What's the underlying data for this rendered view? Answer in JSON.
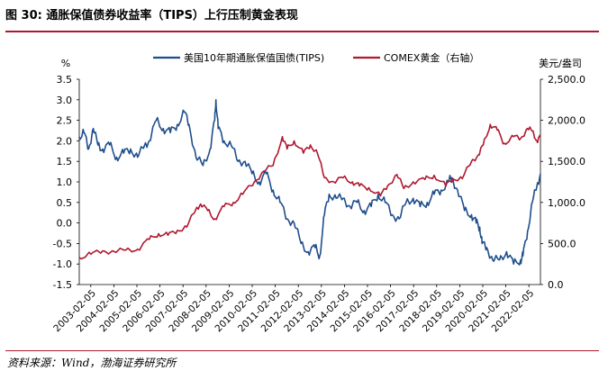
{
  "header": {
    "title": "图 30:  通胀保值债券收益率（TIPS）上行压制黄金表现"
  },
  "source": "资料来源：Wind，渤海证券研究所",
  "chart_data": {
    "type": "line",
    "title": "",
    "legend_position": "top",
    "left_axis": {
      "unit": "%",
      "ylim": [
        -1.5,
        3.5
      ],
      "ticks": [
        "3.5",
        "3.0",
        "2.5",
        "2.0",
        "1.5",
        "1.0",
        "0.5",
        "0.0",
        "-0.5",
        "-1.0",
        "-1.5"
      ]
    },
    "right_axis": {
      "unit": "美元/盎司",
      "ylim": [
        0,
        2500
      ],
      "ticks": [
        "2,500.0",
        "2,000.0",
        "1,500.0",
        "1,000.0",
        "500.0",
        "0.0"
      ]
    },
    "x_tick_labels": [
      "2003-02-05",
      "2004-02-05",
      "2005-02-05",
      "2006-02-05",
      "2007-02-05",
      "2008-02-05",
      "2009-02-05",
      "2010-02-05",
      "2011-02-05",
      "2012-02-05",
      "2013-02-05",
      "2014-02-05",
      "2015-02-05",
      "2016-02-05",
      "2017-02-05",
      "2018-02-05",
      "2019-02-05",
      "2020-02-05",
      "2021-02-05",
      "2022-02-05"
    ],
    "x_range": [
      2003.0,
      2022.75
    ],
    "series": [
      {
        "name": "美国10年期通胀保值国债(TIPS)",
        "axis": "left",
        "color": "#1f4e8c",
        "x": [
          2003.0,
          2003.2,
          2003.4,
          2003.6,
          2003.8,
          2004.0,
          2004.3,
          2004.6,
          2004.9,
          2005.2,
          2005.5,
          2005.8,
          2006.0,
          2006.3,
          2006.6,
          2006.9,
          2007.2,
          2007.5,
          2007.7,
          2008.0,
          2008.3,
          2008.6,
          2008.8,
          2008.85,
          2008.95,
          2009.2,
          2009.5,
          2009.8,
          2010.1,
          2010.4,
          2010.7,
          2011.0,
          2011.3,
          2011.6,
          2011.9,
          2012.2,
          2012.5,
          2012.8,
          2013.1,
          2013.3,
          2013.5,
          2013.7,
          2014.0,
          2014.3,
          2014.6,
          2014.9,
          2015.2,
          2015.5,
          2015.8,
          2016.1,
          2016.4,
          2016.7,
          2017.0,
          2017.3,
          2017.6,
          2017.9,
          2018.2,
          2018.5,
          2018.8,
          2018.95,
          2019.2,
          2019.5,
          2019.8,
          2020.0,
          2020.15,
          2020.25,
          2020.45,
          2020.7,
          2021.0,
          2021.3,
          2021.6,
          2021.9,
          2022.0,
          2022.2,
          2022.4,
          2022.6,
          2022.75
        ],
        "values": [
          2.1,
          2.2,
          1.8,
          2.3,
          1.9,
          1.8,
          1.9,
          1.6,
          1.7,
          1.8,
          1.6,
          1.9,
          2.0,
          2.5,
          2.3,
          2.2,
          2.4,
          2.7,
          2.4,
          1.6,
          1.4,
          1.8,
          2.5,
          3.0,
          2.3,
          2.0,
          1.9,
          1.5,
          1.5,
          1.2,
          1.0,
          1.2,
          0.8,
          0.5,
          0.1,
          0.0,
          -0.5,
          -0.7,
          -0.6,
          -0.8,
          0.2,
          0.7,
          0.6,
          0.6,
          0.4,
          0.5,
          0.3,
          0.4,
          0.7,
          0.5,
          0.2,
          0.1,
          0.5,
          0.6,
          0.4,
          0.5,
          0.7,
          0.8,
          1.0,
          1.1,
          0.8,
          0.3,
          0.2,
          0.0,
          -0.1,
          -0.5,
          -0.6,
          -0.9,
          -0.9,
          -0.7,
          -1.0,
          -0.9,
          -0.8,
          -0.2,
          0.5,
          0.9,
          1.2
        ]
      },
      {
        "name": "COMEX黄金（右轴）",
        "axis": "right",
        "color": "#b0182f",
        "x": [
          2003.0,
          2003.5,
          2004.0,
          2004.5,
          2005.0,
          2005.5,
          2006.0,
          2006.4,
          2006.8,
          2007.2,
          2007.6,
          2008.0,
          2008.2,
          2008.5,
          2008.8,
          2009.2,
          2009.6,
          2010.0,
          2010.5,
          2010.9,
          2011.3,
          2011.7,
          2011.9,
          2012.2,
          2012.6,
          2012.9,
          2013.2,
          2013.5,
          2013.9,
          2014.3,
          2014.7,
          2015.0,
          2015.4,
          2015.9,
          2016.2,
          2016.6,
          2016.9,
          2017.3,
          2017.8,
          2018.2,
          2018.7,
          2019.0,
          2019.4,
          2019.8,
          2020.1,
          2020.3,
          2020.6,
          2020.9,
          2021.2,
          2021.6,
          2021.9,
          2022.2,
          2022.4,
          2022.6,
          2022.75
        ],
        "values": [
          330,
          370,
          410,
          400,
          420,
          430,
          550,
          620,
          600,
          660,
          700,
          920,
          980,
          900,
          800,
          950,
          1000,
          1100,
          1250,
          1380,
          1450,
          1800,
          1650,
          1750,
          1600,
          1700,
          1600,
          1300,
          1250,
          1300,
          1250,
          1200,
          1180,
          1080,
          1200,
          1340,
          1170,
          1250,
          1280,
          1330,
          1200,
          1290,
          1290,
          1500,
          1580,
          1700,
          1950,
          1880,
          1720,
          1800,
          1780,
          1900,
          1870,
          1750,
          1800
        ]
      }
    ]
  }
}
